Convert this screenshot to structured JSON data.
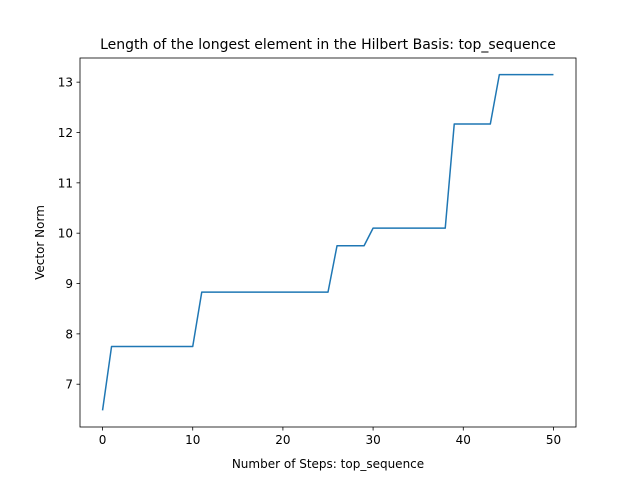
{
  "chart_data": {
    "type": "line",
    "title": "Length of the longest element in the Hilbert Basis: top_sequence",
    "xlabel": "Number of Steps: top_sequence",
    "ylabel": "Vector Norm",
    "xlim": [
      -2.5,
      52.5
    ],
    "ylim": [
      6.15,
      13.48
    ],
    "xticks": [
      0,
      10,
      20,
      30,
      40,
      50
    ],
    "yticks": [
      7,
      8,
      9,
      10,
      11,
      12,
      13
    ],
    "grid": false,
    "line_color": "#1f77b4",
    "x": [
      0,
      1,
      10,
      11,
      25,
      26,
      29,
      30,
      38,
      39,
      43,
      44,
      50
    ],
    "y": [
      6.48,
      7.75,
      7.75,
      8.83,
      8.83,
      9.75,
      9.75,
      10.1,
      10.1,
      12.17,
      12.17,
      13.15,
      13.15
    ]
  }
}
